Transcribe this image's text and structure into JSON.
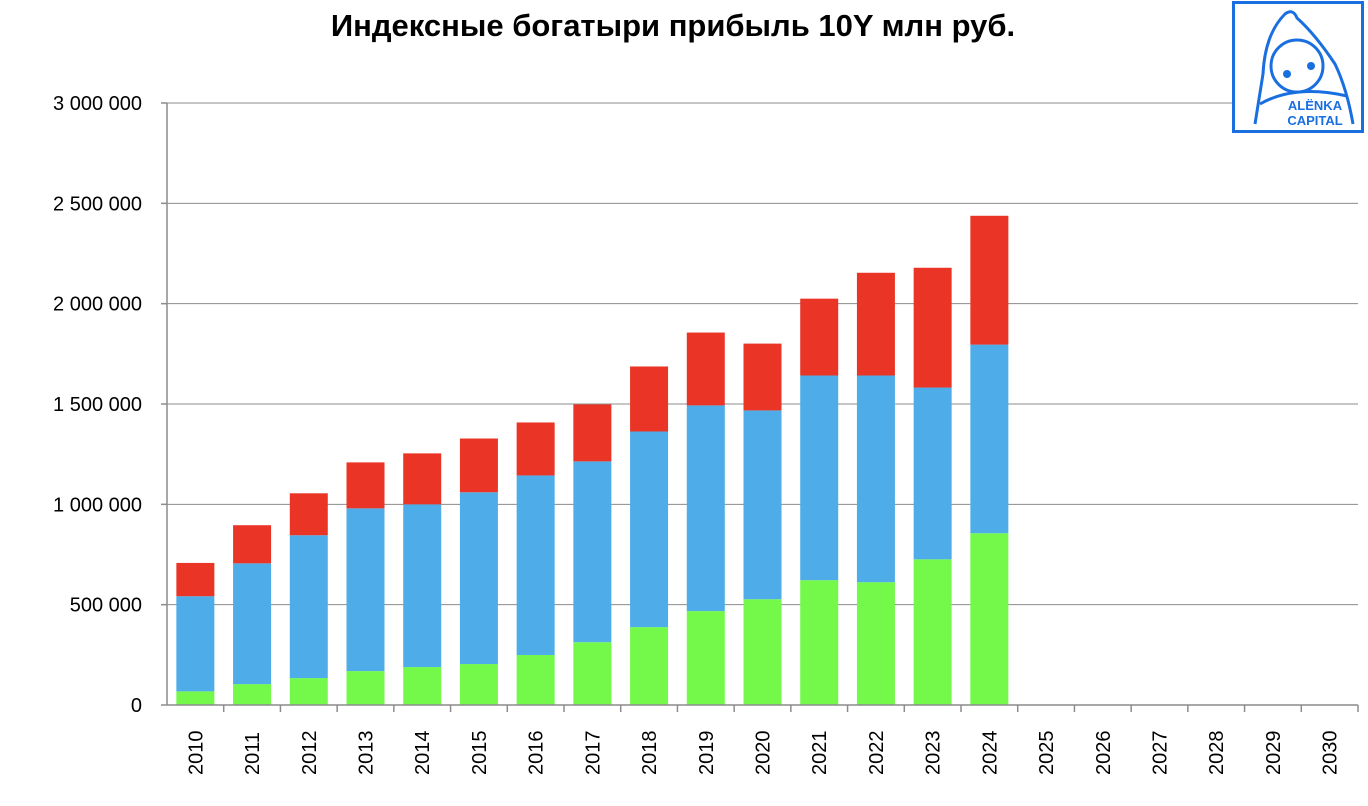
{
  "chart_data": {
    "type": "bar",
    "stacked": true,
    "title": "Индексные богатыри прибыль 10Y млн руб.",
    "xlabel": "",
    "ylabel": "",
    "ylim": [
      0,
      3000000
    ],
    "yticks": [
      0,
      500000,
      1000000,
      1500000,
      2000000,
      2500000,
      3000000
    ],
    "ytick_labels": [
      "0",
      "500 000",
      "1 000 000",
      "1 500 000",
      "2 000 000",
      "2 500 000",
      "3 000 000"
    ],
    "grid": true,
    "legend": "none",
    "categories": [
      "2010",
      "2011",
      "2012",
      "2013",
      "2014",
      "2015",
      "2016",
      "2017",
      "2018",
      "2019",
      "2020",
      "2021",
      "2022",
      "2023",
      "2024",
      "2025",
      "2026",
      "2027",
      "2028",
      "2029",
      "2030"
    ],
    "series": [
      {
        "color": "#74f84a",
        "values": [
          68000,
          104000,
          134000,
          169000,
          189000,
          204000,
          249000,
          313000,
          388000,
          468000,
          527000,
          622000,
          612000,
          726000,
          856000,
          null,
          null,
          null,
          null,
          null,
          null
        ]
      },
      {
        "color": "#4eade8",
        "values": [
          474000,
          602000,
          712000,
          811000,
          811000,
          856000,
          895000,
          901000,
          975000,
          1025000,
          941000,
          1020000,
          1030000,
          856000,
          940000,
          null,
          null,
          null,
          null,
          null,
          null
        ]
      },
      {
        "color": "#ea3526",
        "values": [
          166000,
          190000,
          209000,
          229000,
          254000,
          268000,
          264000,
          284000,
          324000,
          363000,
          333000,
          383000,
          512000,
          597000,
          642000,
          null,
          null,
          null,
          null,
          null,
          null
        ]
      }
    ]
  },
  "logo": {
    "text_line1": "ALЁNKA",
    "text_line2": "CAPITAL",
    "color": "#1a6fe0"
  }
}
